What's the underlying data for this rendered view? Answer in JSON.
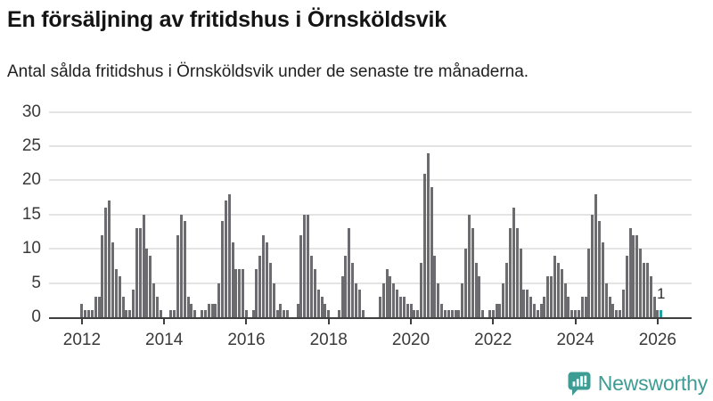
{
  "header": {
    "title": "En försäljning av fritidshus i Örnsköldsvik",
    "subtitle": "Antal sålda fritidshus i Örnsköldsvik under de senaste tre månaderna."
  },
  "chart_data": {
    "type": "bar",
    "title": "En försäljning av fritidshus i Örnsköldsvik",
    "subtitle": "Antal sålda fritidshus i Örnsköldsvik under de senaste tre månaderna.",
    "frequency": "monthly",
    "x_start": "2012-01",
    "x_end": "2026-02",
    "ylim": [
      0,
      30
    ],
    "grid": true,
    "series": [
      {
        "year": 2012,
        "monthly": [
          2,
          1,
          1,
          1,
          3,
          3,
          12,
          16,
          17,
          11,
          7,
          6
        ]
      },
      {
        "year": 2013,
        "monthly": [
          3,
          1,
          1,
          4,
          13,
          13,
          15,
          10,
          9,
          5,
          3,
          1
        ]
      },
      {
        "year": 2014,
        "monthly": [
          0,
          0,
          1,
          1,
          12,
          15,
          14,
          3,
          2,
          1,
          0,
          1
        ]
      },
      {
        "year": 2015,
        "monthly": [
          1,
          2,
          2,
          2,
          5,
          14,
          17,
          18,
          11,
          7,
          7,
          7
        ]
      },
      {
        "year": 2016,
        "monthly": [
          1,
          0,
          1,
          7,
          9,
          12,
          11,
          8,
          5,
          1,
          2,
          1
        ]
      },
      {
        "year": 2017,
        "monthly": [
          1,
          0,
          0,
          2,
          12,
          15,
          15,
          9,
          7,
          4,
          3,
          2
        ]
      },
      {
        "year": 2018,
        "monthly": [
          1,
          0,
          0,
          1,
          6,
          9,
          13,
          8,
          5,
          4,
          1,
          0
        ]
      },
      {
        "year": 2019,
        "monthly": [
          0,
          0,
          0,
          3,
          5,
          7,
          6,
          5,
          4,
          3,
          3,
          2
        ]
      },
      {
        "year": 2020,
        "monthly": [
          2,
          1,
          1,
          8,
          21,
          24,
          19,
          9,
          5,
          2,
          1,
          1
        ]
      },
      {
        "year": 2021,
        "monthly": [
          1,
          1,
          1,
          5,
          10,
          15,
          13,
          8,
          6,
          1,
          0,
          1
        ]
      },
      {
        "year": 2022,
        "monthly": [
          1,
          2,
          2,
          5,
          8,
          13,
          16,
          13,
          10,
          4,
          4,
          3
        ]
      },
      {
        "year": 2023,
        "monthly": [
          2,
          1,
          2,
          3,
          6,
          6,
          9,
          8,
          7,
          5,
          3,
          1
        ]
      },
      {
        "year": 2024,
        "monthly": [
          1,
          1,
          3,
          3,
          10,
          15,
          18,
          14,
          11,
          5,
          3,
          2
        ]
      },
      {
        "year": 2025,
        "monthly": [
          1,
          1,
          4,
          9,
          13,
          12,
          12,
          10,
          8,
          8,
          6,
          3
        ]
      },
      {
        "year": 2026,
        "monthly": [
          1,
          1
        ]
      }
    ],
    "y_axis": {
      "ticks": [
        0,
        5,
        10,
        15,
        20,
        25,
        30
      ]
    },
    "x_axis": {
      "ticks": [
        {
          "label": "2012",
          "month_index": 0
        },
        {
          "label": "2014",
          "month_index": 24
        },
        {
          "label": "2016",
          "month_index": 48
        },
        {
          "label": "2018",
          "month_index": 72
        },
        {
          "label": "2020",
          "month_index": 96
        },
        {
          "label": "2022",
          "month_index": 120
        },
        {
          "label": "2024",
          "month_index": 144
        },
        {
          "label": "2026",
          "month_index": 168
        }
      ]
    },
    "highlight": {
      "month_index": 169,
      "label": "1",
      "color": "#21a2a0"
    },
    "colors": {
      "bar": "#6b6b70",
      "highlight": "#21a2a0",
      "gridline": "#e4e4e4",
      "axis": "#3f3f3f"
    },
    "legend": null
  },
  "footer": {
    "brand": "Newsworthy",
    "brand_color": "#3d9c94"
  }
}
